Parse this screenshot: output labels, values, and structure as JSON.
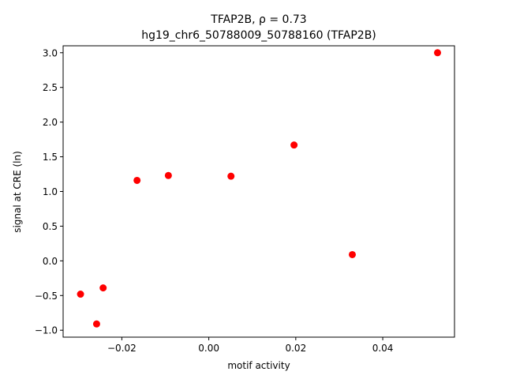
{
  "chart_data": {
    "type": "scatter",
    "title_line1": "TFAP2B, ρ = 0.73",
    "title_line2": "hg19_chr6_50788009_50788160 (TFAP2B)",
    "xlabel": "motif activity",
    "ylabel": "signal at CRE (ln)",
    "xlim": [
      -0.0335,
      0.0565
    ],
    "ylim": [
      -1.1,
      3.1
    ],
    "xticks": [
      {
        "value": -0.02,
        "label": "−0.02"
      },
      {
        "value": 0.0,
        "label": "0.00"
      },
      {
        "value": 0.02,
        "label": "0.02"
      },
      {
        "value": 0.04,
        "label": "0.04"
      }
    ],
    "yticks": [
      {
        "value": -1.0,
        "label": "−1.0"
      },
      {
        "value": -0.5,
        "label": "−0.5"
      },
      {
        "value": 0.0,
        "label": "0.0"
      },
      {
        "value": 0.5,
        "label": "0.5"
      },
      {
        "value": 1.0,
        "label": "1.0"
      },
      {
        "value": 1.5,
        "label": "1.5"
      },
      {
        "value": 2.0,
        "label": "2.0"
      },
      {
        "value": 2.5,
        "label": "2.5"
      },
      {
        "value": 3.0,
        "label": "3.0"
      }
    ],
    "grid": false,
    "marker_color": "#ff0000",
    "points": [
      {
        "x": -0.0295,
        "y": -0.48
      },
      {
        "x": -0.0258,
        "y": -0.91
      },
      {
        "x": -0.0243,
        "y": -0.39
      },
      {
        "x": -0.0165,
        "y": 1.16
      },
      {
        "x": -0.0093,
        "y": 1.23
      },
      {
        "x": 0.0051,
        "y": 1.22
      },
      {
        "x": 0.0196,
        "y": 1.67
      },
      {
        "x": 0.033,
        "y": 0.09
      },
      {
        "x": 0.0526,
        "y": 3.0
      }
    ]
  }
}
